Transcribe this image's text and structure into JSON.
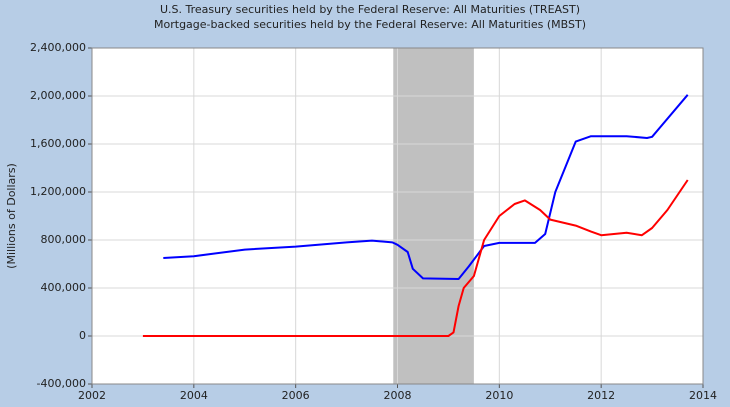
{
  "chart_data": {
    "type": "line",
    "title": "U.S. Treasury securities held by the Federal Reserve: All Maturities (TREAST)",
    "subtitle": "Mortgage-backed securities held by the Federal Reserve: All Maturities (MBST)",
    "y_label": "(Millions of Dollars)",
    "xlim": [
      2002,
      2014
    ],
    "xticks": [
      2002,
      2004,
      2006,
      2008,
      2010,
      2012,
      2014
    ],
    "ylim": [
      -400000,
      2400000
    ],
    "yticks": [
      {
        "value": -400000,
        "label": "-400,000"
      },
      0,
      {
        "value": 400000,
        "label": "400,000"
      },
      {
        "value": 800000,
        "label": "800,000"
      },
      {
        "value": 1200000,
        "label": "1,200,000"
      },
      {
        "value": 1600000,
        "label": "1,600,000"
      },
      {
        "value": 2000000,
        "label": "2,000,000"
      },
      {
        "value": 2400000,
        "label": "2,400,000"
      }
    ],
    "grid": true,
    "recessions": [
      [
        2007.917,
        2009.5
      ]
    ],
    "recession_color": "#c0c0c0",
    "series": [
      {
        "name": "TREAST",
        "color": "#0000ff",
        "x": [
          2003.4,
          2004,
          2005,
          2006,
          2007,
          2007.5,
          2007.9,
          2008.0,
          2008.2,
          2008.3,
          2008.5,
          2009.2,
          2009.4,
          2009.7,
          2010,
          2010.7,
          2010.9,
          2011.1,
          2011.5,
          2011.8,
          2012.5,
          2012.9,
          2013.0,
          2013.7
        ],
        "values": [
          650000,
          665000,
          720000,
          745000,
          780000,
          795000,
          780000,
          760000,
          700000,
          560000,
          480000,
          475000,
          580000,
          750000,
          776000,
          776000,
          850000,
          1200000,
          1620000,
          1665000,
          1665000,
          1650000,
          1660000,
          2010000
        ]
      },
      {
        "name": "MBST",
        "color": "#ff0000",
        "x": [
          2003,
          2009.0,
          2009.1,
          2009.2,
          2009.3,
          2009.5,
          2009.7,
          2010,
          2010.3,
          2010.5,
          2010.8,
          2011,
          2011.5,
          2011.8,
          2012,
          2012.5,
          2012.8,
          2013.0,
          2013.3,
          2013.7
        ],
        "values": [
          0,
          0,
          30000,
          250000,
          400000,
          500000,
          800000,
          1000000,
          1100000,
          1130000,
          1050000,
          970000,
          920000,
          870000,
          840000,
          860000,
          840000,
          900000,
          1050000,
          1300000
        ]
      }
    ]
  }
}
